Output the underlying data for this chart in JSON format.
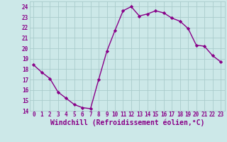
{
  "x": [
    0,
    1,
    2,
    3,
    4,
    5,
    6,
    7,
    8,
    9,
    10,
    11,
    12,
    13,
    14,
    15,
    16,
    17,
    18,
    19,
    20,
    21,
    22,
    23
  ],
  "y": [
    18.4,
    17.7,
    17.1,
    15.8,
    15.2,
    14.6,
    14.3,
    14.2,
    17.0,
    19.7,
    21.7,
    23.6,
    24.0,
    23.1,
    23.3,
    23.6,
    23.4,
    22.9,
    22.6,
    21.9,
    20.3,
    20.2,
    19.3,
    18.7
  ],
  "line_color": "#880088",
  "marker": "D",
  "marker_size": 2.2,
  "bg_color": "#cce8e8",
  "grid_color": "#aacccc",
  "xlabel": "Windchill (Refroidissement éolien,°C)",
  "xlabel_color": "#880088",
  "ylim": [
    14,
    24.5
  ],
  "xlim": [
    -0.5,
    23.5
  ],
  "yticks": [
    14,
    15,
    16,
    17,
    18,
    19,
    20,
    21,
    22,
    23,
    24
  ],
  "xticks": [
    0,
    1,
    2,
    3,
    4,
    5,
    6,
    7,
    8,
    9,
    10,
    11,
    12,
    13,
    14,
    15,
    16,
    17,
    18,
    19,
    20,
    21,
    22,
    23
  ],
  "tick_label_color": "#880088",
  "tick_label_fontsize": 5.5,
  "xlabel_fontsize": 7.0,
  "linewidth": 1.0
}
